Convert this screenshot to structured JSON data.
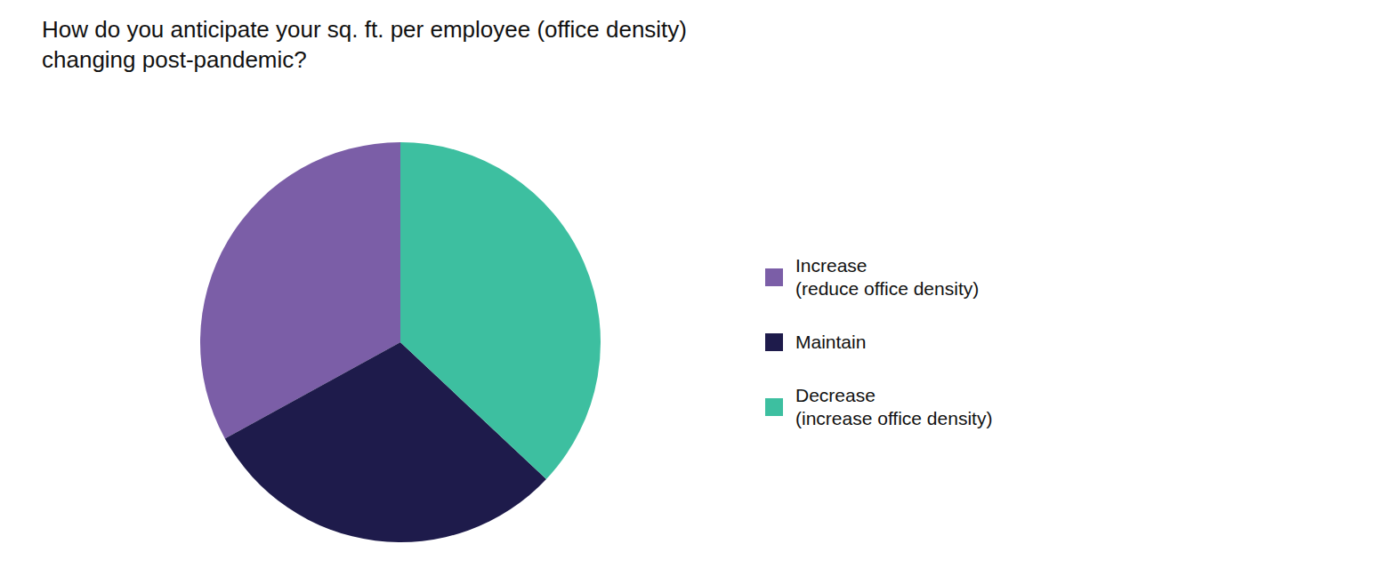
{
  "chart_data": {
    "type": "pie",
    "title": "How do you anticipate your sq. ft. per employee (office density)\nchanging post-pandemic?",
    "categories": [
      "Increase\n(reduce office density)",
      "Maintain",
      "Decrease\n(increase office density)"
    ],
    "values": [
      33,
      30,
      37
    ],
    "colors": [
      "#7B5EA7",
      "#1E1B4B",
      "#3DBFA0"
    ],
    "legend": "right"
  }
}
